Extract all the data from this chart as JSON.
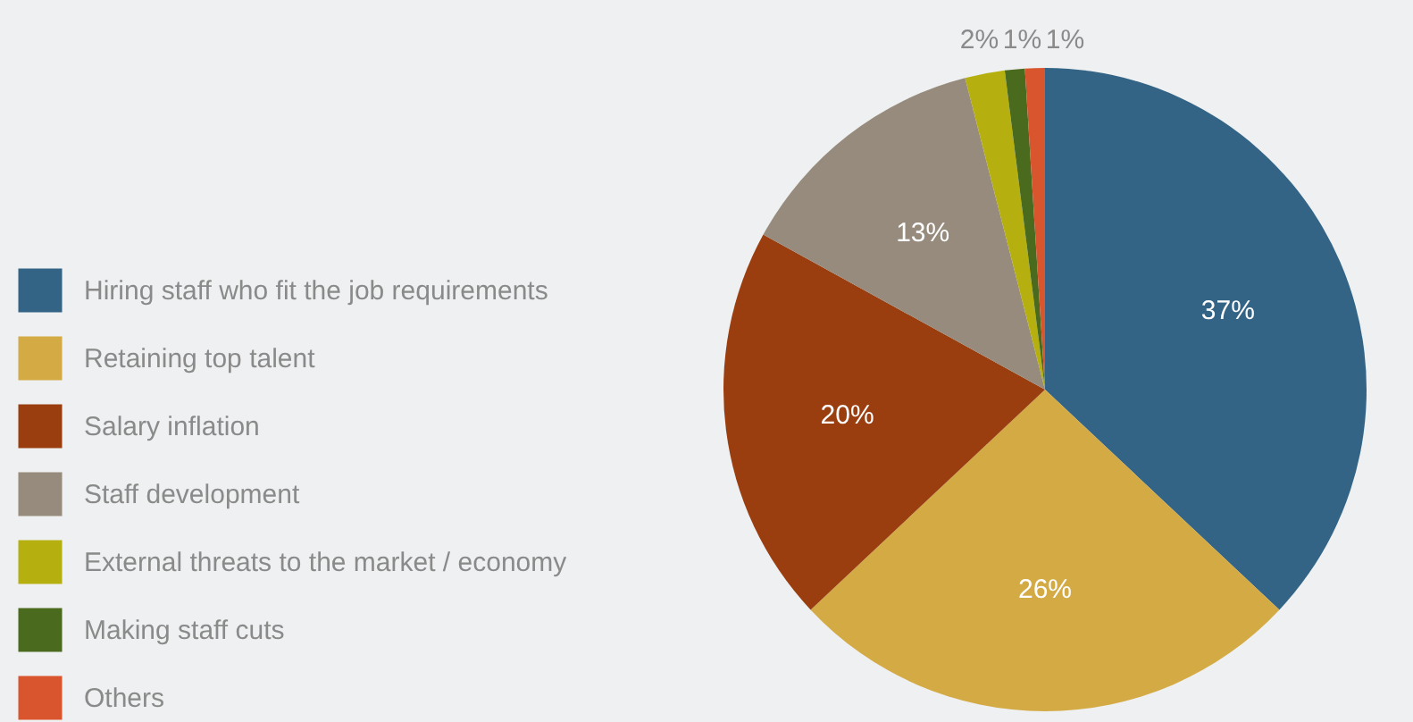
{
  "chart_data": {
    "type": "pie",
    "categories": [
      "Hiring staff who fit the job requirements",
      "Retaining top talent",
      "Salary inflation",
      "Staff development",
      "External threats to the market / economy",
      "Making staff cuts",
      "Others"
    ],
    "values": [
      37,
      26,
      20,
      13,
      2,
      1,
      1
    ],
    "value_labels": [
      "37%",
      "26%",
      "20%",
      "13%",
      "2%",
      "1%",
      "1%"
    ],
    "colors": [
      "#336485",
      "#d4aa45",
      "#9a3e10",
      "#968b7c",
      "#b5b010",
      "#4a6a1e",
      "#d9552e"
    ],
    "legend": "left"
  }
}
